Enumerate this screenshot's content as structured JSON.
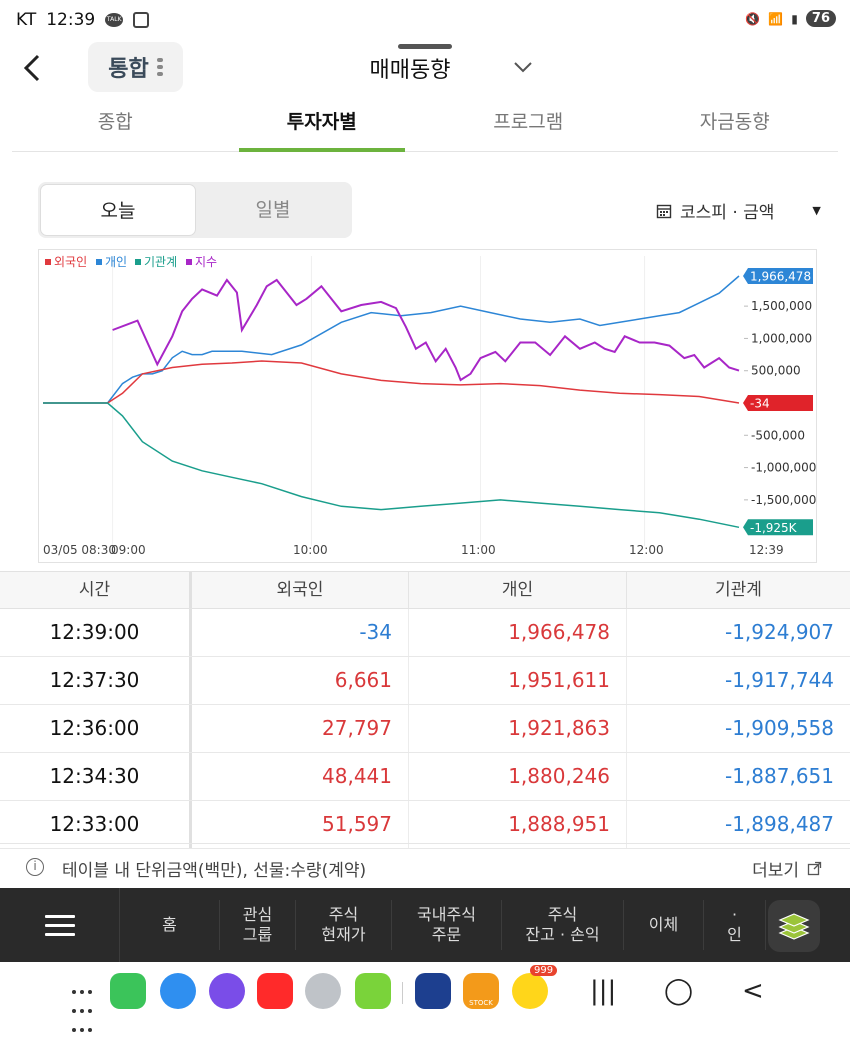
{
  "status": {
    "carrier": "KT",
    "time": "12:39",
    "battery": "76",
    "talk_badge": "TALK"
  },
  "header": {
    "combo_label": "통합",
    "title": "매매동향"
  },
  "tabs": [
    {
      "label": "종합"
    },
    {
      "label": "투자자별"
    },
    {
      "label": "프로그램"
    },
    {
      "label": "자금동향"
    }
  ],
  "period": {
    "today": "오늘",
    "daily": "일별"
  },
  "market": {
    "label": "코스피 · 금액"
  },
  "chart_data": {
    "type": "line",
    "legend": [
      "외국인",
      "개인",
      "기관계",
      "지수"
    ],
    "colors": {
      "외국인": "#e0393e",
      "개인": "#2d86d6",
      "기관계": "#1a9e8c",
      "지수": "#a826c7"
    },
    "x_labels": [
      "03/05 08:30",
      "09:00",
      "10:00",
      "11:00",
      "12:00",
      "12:39"
    ],
    "y_ticks": [
      "1,500,000",
      "1,000,000",
      "500,000",
      "-500,000",
      "-1,000,000",
      "-1,500,000"
    ],
    "end_labels": {
      "개인": "1,966,478",
      "외국인": "-34",
      "기관계": "-1,925K"
    },
    "series": [
      {
        "name": "개인",
        "x": [
          0,
          25,
          30,
          40,
          55,
          65,
          80,
          90,
          100,
          110,
          120,
          130,
          140,
          150,
          160,
          170,
          180,
          200,
          230,
          260,
          300,
          330,
          360,
          390,
          420,
          450,
          480,
          510,
          540,
          560,
          580,
          600,
          620,
          640,
          660,
          680,
          700
        ],
        "y": [
          0,
          0,
          0,
          0,
          0,
          0,
          300000,
          400000,
          450000,
          450000,
          500000,
          700000,
          800000,
          750000,
          750000,
          800000,
          800000,
          800000,
          750000,
          900000,
          1250000,
          1400000,
          1350000,
          1400000,
          1500000,
          1400000,
          1300000,
          1250000,
          1300000,
          1200000,
          1250000,
          1300000,
          1350000,
          1400000,
          1550000,
          1700000,
          1966478
        ]
      },
      {
        "name": "외국인",
        "x": [
          0,
          25,
          30,
          40,
          55,
          65,
          80,
          100,
          130,
          160,
          190,
          220,
          260,
          300,
          340,
          380,
          420,
          460,
          500,
          540,
          580,
          620,
          660,
          700
        ],
        "y": [
          0,
          0,
          0,
          0,
          0,
          0,
          150000,
          450000,
          550000,
          600000,
          620000,
          650000,
          620000,
          450000,
          350000,
          300000,
          280000,
          300000,
          270000,
          200000,
          150000,
          130000,
          100000,
          -34
        ]
      },
      {
        "name": "기관계",
        "x": [
          0,
          25,
          30,
          40,
          55,
          65,
          80,
          100,
          130,
          160,
          190,
          220,
          260,
          300,
          340,
          380,
          420,
          460,
          500,
          540,
          580,
          620,
          660,
          700
        ],
        "y": [
          0,
          0,
          0,
          0,
          0,
          0,
          -200000,
          -600000,
          -900000,
          -1050000,
          -1150000,
          -1250000,
          -1450000,
          -1600000,
          -1650000,
          -1600000,
          -1550000,
          -1500000,
          -1550000,
          -1600000,
          -1650000,
          -1700000,
          -1800000,
          -1924907
        ]
      },
      {
        "name": "지수",
        "x": [
          70,
          95,
          115,
          130,
          140,
          150,
          160,
          175,
          185,
          195,
          200,
          215,
          225,
          235,
          245,
          255,
          265,
          280,
          300,
          320,
          340,
          355,
          365,
          375,
          385,
          395,
          405,
          415,
          420,
          430,
          440,
          455,
          465,
          480,
          495,
          510,
          525,
          540,
          555,
          565,
          575,
          585,
          600,
          615,
          630,
          645,
          655,
          665,
          680,
          690,
          700
        ],
        "y": [
          2652,
          2655,
          2641,
          2650,
          2658,
          2662,
          2665,
          2663,
          2668,
          2664,
          2652,
          2660,
          2666,
          2668,
          2664,
          2660,
          2662,
          2666,
          2658,
          2660,
          2661,
          2659,
          2653,
          2646,
          2648,
          2642,
          2646,
          2640,
          2636,
          2638,
          2643,
          2645,
          2642,
          2648,
          2648,
          2644,
          2650,
          2646,
          2648,
          2646,
          2645,
          2650,
          2648,
          2648,
          2647,
          2643,
          2644,
          2640,
          2643,
          2640,
          2639
        ]
      }
    ]
  },
  "table": {
    "headers": [
      "시간",
      "외국인",
      "개인",
      "기관계"
    ],
    "rows": [
      {
        "time": "12:39:00",
        "foreign": "-34",
        "individual": "1,966,478",
        "institution": "-1,924,907"
      },
      {
        "time": "12:37:30",
        "foreign": "6,661",
        "individual": "1,951,611",
        "institution": "-1,917,744"
      },
      {
        "time": "12:36:00",
        "foreign": "27,797",
        "individual": "1,921,863",
        "institution": "-1,909,558"
      },
      {
        "time": "12:34:30",
        "foreign": "48,441",
        "individual": "1,880,246",
        "institution": "-1,887,651"
      },
      {
        "time": "12:33:00",
        "foreign": "51,597",
        "individual": "1,888,951",
        "institution": "-1,898,487"
      }
    ]
  },
  "footnote": {
    "text": "테이블 내 단위금액(백만), 선물:수량(계약)",
    "more": "더보기"
  },
  "bottom_nav": [
    {
      "line1": "홈",
      "line2": ""
    },
    {
      "line1": "관심",
      "line2": "그룹"
    },
    {
      "line1": "주식",
      "line2": "현재가"
    },
    {
      "line1": "국내주식",
      "line2": "주문"
    },
    {
      "line1": "주식",
      "line2": "잔고 · 손익"
    },
    {
      "line1": "이체",
      "line2": ""
    },
    {
      "line1": "·",
      "line2": "인"
    }
  ],
  "dock": {
    "badge": "999",
    "stock_label": "STOCK"
  }
}
